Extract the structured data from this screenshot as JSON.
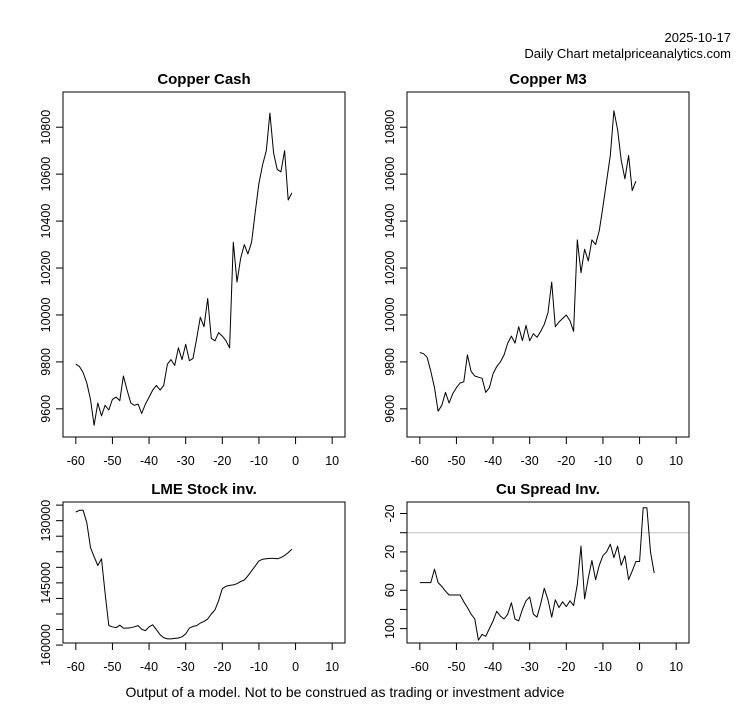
{
  "header": {
    "date": "2025-10-17",
    "subtitle": "Daily Chart metalpriceanalytics.com"
  },
  "footer": {
    "disclaimer": "Output of a model. Not to be construed as trading or investment advice"
  },
  "colors": {
    "line": "#000000",
    "frame": "#000000",
    "zero_line": "#c0c0c0",
    "background": "#ffffff"
  },
  "chart_data": [
    {
      "type": "line",
      "title": "Copper Cash",
      "xlim": [
        -63.5,
        13.5
      ],
      "x_ticks": [
        -60,
        -50,
        -40,
        -30,
        -20,
        -10,
        0,
        10
      ],
      "x_start": -60,
      "y_axis": {
        "top_value": 10950,
        "bottom_value": 9480,
        "inverted": false,
        "ticks": [
          {
            "v": 9600,
            "label": "9600"
          },
          {
            "v": 9800,
            "label": "9800"
          },
          {
            "v": 10000,
            "label": "10000"
          },
          {
            "v": 10200,
            "label": "10200"
          },
          {
            "v": 10400,
            "label": "10400"
          },
          {
            "v": 10600,
            "label": "10600"
          },
          {
            "v": 10800,
            "label": "10800"
          }
        ]
      },
      "values": [
        9790,
        9780,
        9755,
        9710,
        9640,
        9530,
        9625,
        9570,
        9615,
        9595,
        9640,
        9650,
        9635,
        9740,
        9680,
        9625,
        9615,
        9620,
        9580,
        9620,
        9650,
        9680,
        9700,
        9680,
        9700,
        9790,
        9810,
        9785,
        9860,
        9810,
        9875,
        9805,
        9815,
        9900,
        9990,
        9950,
        10070,
        9900,
        9890,
        9925,
        9910,
        9890,
        9860,
        10310,
        10140,
        10240,
        10300,
        10260,
        10310,
        10440,
        10560,
        10640,
        10700,
        10860,
        10690,
        10620,
        10610,
        10700,
        10490,
        10520
      ]
    },
    {
      "type": "line",
      "title": "Copper M3",
      "xlim": [
        -63.5,
        13.5
      ],
      "x_ticks": [
        -60,
        -50,
        -40,
        -30,
        -20,
        -10,
        0,
        10
      ],
      "x_start": -60,
      "y_axis": {
        "top_value": 10950,
        "bottom_value": 9480,
        "inverted": false,
        "ticks": [
          {
            "v": 9600,
            "label": "9600"
          },
          {
            "v": 9800,
            "label": "9800"
          },
          {
            "v": 10000,
            "label": "10000"
          },
          {
            "v": 10200,
            "label": "10200"
          },
          {
            "v": 10400,
            "label": "10400"
          },
          {
            "v": 10600,
            "label": "10600"
          },
          {
            "v": 10800,
            "label": "10800"
          }
        ]
      },
      "values": [
        9840,
        9835,
        9820,
        9760,
        9690,
        9590,
        9615,
        9670,
        9625,
        9665,
        9690,
        9710,
        9715,
        9830,
        9760,
        9740,
        9735,
        9730,
        9670,
        9690,
        9750,
        9780,
        9800,
        9830,
        9880,
        9910,
        9880,
        9950,
        9890,
        9955,
        9890,
        9920,
        9905,
        9930,
        9960,
        10010,
        10140,
        9950,
        9970,
        9985,
        10000,
        9975,
        9930,
        10320,
        10180,
        10280,
        10230,
        10320,
        10300,
        10360,
        10460,
        10570,
        10680,
        10870,
        10790,
        10660,
        10580,
        10680,
        10530,
        10570
      ]
    },
    {
      "type": "line",
      "title": "LME Stock inv.",
      "xlim": [
        -63.5,
        13.5
      ],
      "x_ticks": [
        -60,
        -50,
        -40,
        -30,
        -20,
        -10,
        0,
        10
      ],
      "x_start": -60,
      "y_axis": {
        "top_value": 125500,
        "bottom_value": 159500,
        "inverted": true,
        "ticks": [
          {
            "v": 126250
          },
          {
            "v": 130000,
            "label": "130000"
          },
          {
            "v": 133750
          },
          {
            "v": 137500
          },
          {
            "v": 141250
          },
          {
            "v": 145000,
            "label": "145000"
          },
          {
            "v": 148750
          },
          {
            "v": 152500
          },
          {
            "v": 156250
          },
          {
            "v": 160000,
            "label": "160000"
          }
        ]
      },
      "values": [
        127900,
        127500,
        127500,
        130500,
        136500,
        138700,
        140800,
        139200,
        147500,
        155300,
        155600,
        155800,
        155200,
        155900,
        155900,
        155800,
        155600,
        155300,
        156200,
        156500,
        155600,
        155100,
        156300,
        157500,
        158200,
        158500,
        158500,
        158400,
        158300,
        158000,
        157300,
        155900,
        155500,
        155300,
        154700,
        154300,
        153700,
        152500,
        151500,
        149300,
        146400,
        145800,
        145600,
        145500,
        145200,
        144700,
        144300,
        143300,
        142100,
        140900,
        139700,
        139300,
        139200,
        139100,
        139100,
        139200,
        138900,
        138400,
        137700,
        136900
      ]
    },
    {
      "type": "line",
      "title": "Cu Spread Inv.",
      "xlim": [
        -63.5,
        13.5
      ],
      "x_ticks": [
        -60,
        -50,
        -40,
        -30,
        -20,
        -10,
        0,
        10
      ],
      "x_start": -60,
      "reference_line": 0,
      "y_axis": {
        "top_value": -32,
        "bottom_value": 115,
        "inverted": true,
        "ticks": [
          {
            "v": -20,
            "label": "-20"
          },
          {
            "v": 0
          },
          {
            "v": 20,
            "label": "20"
          },
          {
            "v": 40
          },
          {
            "v": 60,
            "label": "60"
          },
          {
            "v": 80
          },
          {
            "v": 100,
            "label": "100"
          }
        ]
      },
      "values": [
        52,
        52,
        52,
        52,
        38,
        52,
        56,
        61,
        65,
        65,
        65,
        65,
        72,
        78,
        85,
        90,
        112,
        106,
        108,
        100,
        92,
        82,
        87,
        90,
        85,
        73,
        90,
        92,
        80,
        71,
        67,
        85,
        88,
        74,
        58,
        70,
        88,
        70,
        78,
        72,
        77,
        71,
        76,
        54,
        14,
        69,
        47,
        29,
        49,
        34,
        24,
        20,
        12,
        26,
        14,
        34,
        24,
        49,
        40,
        30,
        30,
        -26,
        -26,
        20,
        42
      ]
    }
  ]
}
